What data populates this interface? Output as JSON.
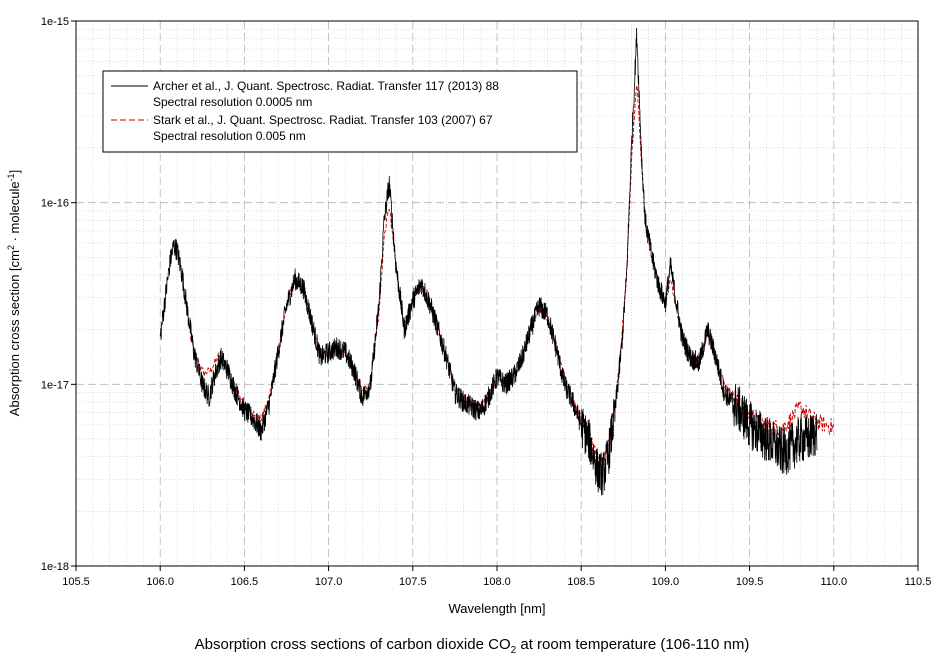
{
  "caption": {
    "prefix": "Absorption cross sections of carbon dioxide CO",
    "subscript": "2",
    "suffix": " at room temperature (106-110 nm)"
  },
  "chart_data": {
    "type": "line",
    "xlabel": "Wavelength [nm]",
    "ylabel": {
      "main": "Absorption cross section [cm",
      "exp1": "2",
      "middle": " · molecule",
      "exp2": "-1",
      "end": "]"
    },
    "xlim": [
      105.5,
      110.5
    ],
    "ylim": [
      1e-18,
      1e-15
    ],
    "yscale": "log",
    "grid": true,
    "legend_position": "top-left",
    "x_ticks": [
      "105.5",
      "106.0",
      "106.5",
      "107.0",
      "107.5",
      "108.0",
      "108.5",
      "109.0",
      "109.5",
      "110.0",
      "110.5"
    ],
    "y_ticks": [
      "1e-18",
      "1e-17",
      "1e-16",
      "1e-15"
    ],
    "series": [
      {
        "name": "Archer et al., J. Quant. Spectrosc. Radiat. Transfer 117 (2013) 88",
        "note": "Spectral resolution 0.0005 nm",
        "color": "#000000",
        "style": "solid",
        "noise": 0.14,
        "x": [
          106.0,
          106.03,
          106.06,
          106.08,
          106.1,
          106.13,
          106.16,
          106.2,
          106.25,
          106.29,
          106.32,
          106.36,
          106.4,
          106.45,
          106.5,
          106.55,
          106.6,
          106.65,
          106.7,
          106.75,
          106.8,
          106.85,
          106.9,
          106.95,
          107.0,
          107.05,
          107.1,
          107.15,
          107.2,
          107.25,
          107.3,
          107.33,
          107.36,
          107.4,
          107.45,
          107.5,
          107.55,
          107.6,
          107.65,
          107.7,
          107.75,
          107.8,
          107.85,
          107.9,
          107.95,
          108.0,
          108.05,
          108.1,
          108.15,
          108.2,
          108.25,
          108.3,
          108.35,
          108.4,
          108.45,
          108.5,
          108.55,
          108.6,
          108.63,
          108.66,
          108.7,
          108.74,
          108.77,
          108.8,
          108.83,
          108.86,
          108.88,
          108.92,
          108.96,
          109.0,
          109.03,
          109.06,
          109.1,
          109.15,
          109.2,
          109.25,
          109.3,
          109.35,
          109.4,
          109.45,
          109.5,
          109.55,
          109.6,
          109.65,
          109.7,
          109.75,
          109.8,
          109.85,
          109.9
        ],
        "y": [
          1.8e-17,
          3e-17,
          4.8e-17,
          5.8e-17,
          5.5e-17,
          4e-17,
          2.6e-17,
          1.5e-17,
          1e-17,
          8.5e-18,
          1.1e-17,
          1.4e-17,
          1.2e-17,
          9e-18,
          7.2e-18,
          6.5e-18,
          5.5e-18,
          8e-18,
          1.5e-17,
          2.7e-17,
          3.8e-17,
          3.4e-17,
          2.2e-17,
          1.4e-17,
          1.5e-17,
          1.6e-17,
          1.5e-17,
          1.2e-17,
          8.5e-18,
          1e-17,
          2.8e-17,
          8e-17,
          1.28e-16,
          4.5e-17,
          2e-17,
          2.9e-17,
          3.6e-17,
          2.8e-17,
          2e-17,
          1.4e-17,
          9e-18,
          8e-18,
          7.5e-18,
          7e-18,
          8.5e-18,
          1.1e-17,
          1e-17,
          1.1e-17,
          1.4e-17,
          2e-17,
          2.7e-17,
          2.4e-17,
          1.6e-17,
          1e-17,
          8e-18,
          6e-18,
          4.8e-18,
          3.3e-18,
          3.2e-18,
          4e-18,
          7e-18,
          1.6e-17,
          4e-17,
          2.2e-16,
          8.5e-16,
          1.7e-16,
          8e-17,
          5e-17,
          3.5e-17,
          2.8e-17,
          4.5e-17,
          3e-17,
          1.8e-17,
          1.4e-17,
          1.3e-17,
          2e-17,
          1.4e-17,
          9e-18,
          8e-18,
          7e-18,
          6e-18,
          5.5e-18,
          5e-18,
          4.6e-18,
          4.2e-18,
          4.5e-18,
          5e-18,
          5e-18,
          5.5e-18
        ]
      },
      {
        "name": "Stark et al., J. Quant. Spectrosc. Radiat. Transfer 103 (2007) 67",
        "note": "Spectral resolution 0.005 nm",
        "color": "#cc0000",
        "style": "dashed",
        "noise": 0.05,
        "x": [
          106.18,
          106.22,
          106.26,
          106.3,
          106.35,
          106.4,
          106.45,
          106.5,
          106.55,
          106.6,
          106.65,
          106.7,
          106.75,
          106.8,
          106.85,
          106.9,
          106.95,
          107.0,
          107.05,
          107.1,
          107.15,
          107.2,
          107.25,
          107.3,
          107.33,
          107.36,
          107.4,
          107.45,
          107.5,
          107.55,
          107.6,
          107.65,
          107.7,
          107.75,
          107.8,
          107.85,
          107.9,
          107.95,
          108.0,
          108.05,
          108.1,
          108.15,
          108.2,
          108.25,
          108.3,
          108.35,
          108.4,
          108.45,
          108.5,
          108.55,
          108.6,
          108.63,
          108.66,
          108.7,
          108.74,
          108.77,
          108.8,
          108.83,
          108.86,
          108.88,
          108.92,
          108.96,
          109.0,
          109.03,
          109.06,
          109.1,
          109.15,
          109.2,
          109.25,
          109.3,
          109.35,
          109.4,
          109.45,
          109.5,
          109.55,
          109.6,
          109.65,
          109.7,
          109.75,
          109.8,
          109.85,
          109.9,
          109.95,
          110.0
        ],
        "y": [
          1.8e-17,
          1.35e-17,
          1.15e-17,
          1.2e-17,
          1.45e-17,
          1.2e-17,
          9.5e-18,
          7.5e-18,
          6.8e-18,
          6.5e-18,
          8.5e-18,
          1.5e-17,
          2.7e-17,
          3.8e-17,
          3.3e-17,
          2.1e-17,
          1.45e-17,
          1.5e-17,
          1.55e-17,
          1.45e-17,
          1.2e-17,
          9e-18,
          1.05e-17,
          2.5e-17,
          6.5e-17,
          9.5e-17,
          4.5e-17,
          2.1e-17,
          3e-17,
          3.6e-17,
          2.8e-17,
          2e-17,
          1.4e-17,
          9.5e-18,
          8.5e-18,
          8e-18,
          7.5e-18,
          8.5e-18,
          1.1e-17,
          1.05e-17,
          1.1e-17,
          1.4e-17,
          2e-17,
          2.6e-17,
          2.3e-17,
          1.6e-17,
          1.1e-17,
          8.5e-18,
          6.5e-18,
          5e-18,
          3.8e-18,
          3.6e-18,
          4.5e-18,
          7.5e-18,
          1.8e-17,
          4e-17,
          1.8e-16,
          4.6e-16,
          1.6e-16,
          8e-17,
          5e-17,
          3.5e-17,
          2.8e-17,
          3.9e-17,
          2.8e-17,
          1.8e-17,
          1.45e-17,
          1.35e-17,
          1.9e-17,
          1.4e-17,
          1e-17,
          8.5e-18,
          7.5e-18,
          6.8e-18,
          6.2e-18,
          6e-18,
          5.8e-18,
          5.8e-18,
          6.5e-18,
          7.5e-18,
          6.8e-18,
          6.2e-18,
          6e-18,
          5.8e-18
        ]
      }
    ]
  }
}
